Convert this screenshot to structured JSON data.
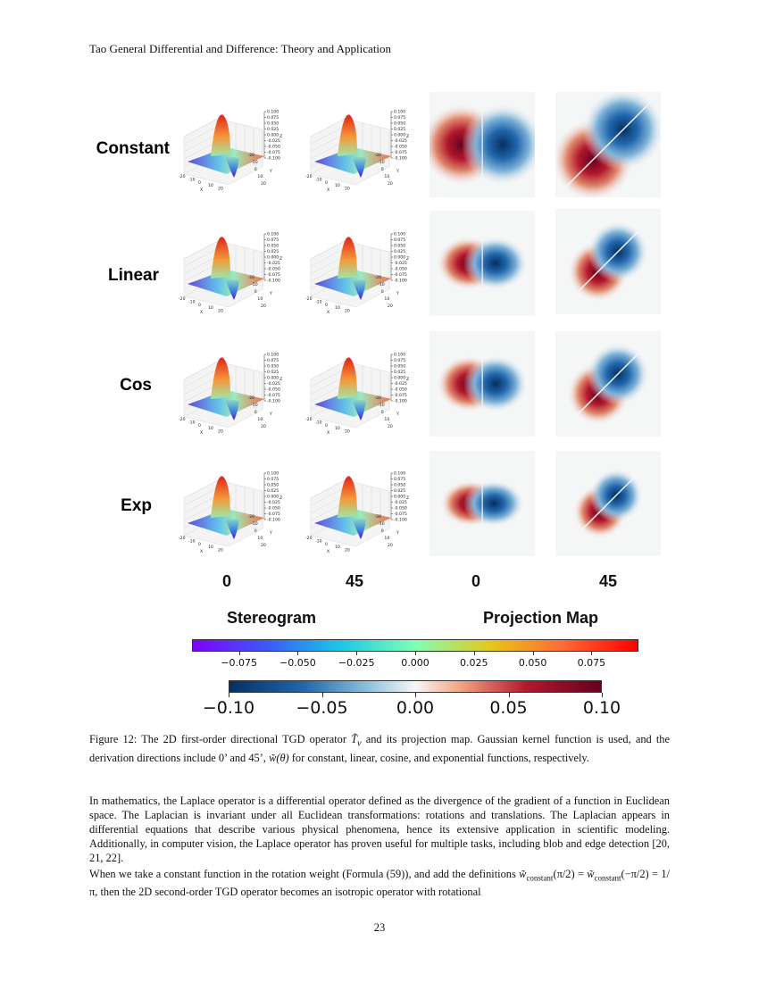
{
  "header": {
    "running_title": "Tao General Differential and Difference: Theory and Application"
  },
  "figure": {
    "row_labels": [
      "Constant",
      "Linear",
      "Cos",
      "Exp"
    ],
    "column_angles": [
      "0",
      "45",
      "0",
      "45"
    ],
    "group_labels": {
      "left": "Stereogram",
      "right": "Projection Map"
    },
    "axis_labels": {
      "x": "X",
      "y": "Y",
      "z": "Z"
    },
    "z_ticks": [
      "0.100",
      "0.075",
      "0.050",
      "0.025",
      "0.000",
      "-0.025",
      "-0.050",
      "-0.075",
      "-0.100"
    ],
    "xy_ticks": [
      "-20",
      "-10",
      "0",
      "10",
      "20"
    ],
    "colorbar_rainbow": {
      "colormap": "rainbow",
      "ticks": [
        "−0.075",
        "−0.050",
        "−0.025",
        "0.000",
        "0.025",
        "0.050",
        "0.075"
      ]
    },
    "colorbar_diverging": {
      "colormap": "RdBu (diverging, dark blue to dark red)",
      "ticks": [
        "−0.10",
        "−0.05",
        "0.00",
        "0.05",
        "0.10"
      ]
    }
  },
  "caption": {
    "lead": "Figure 12: The 2D first-order directional TGD operator ",
    "symbol": "T̃",
    "symbol_sub": "v",
    "mid": " and its projection map. Gaussian kernel function is used, and the derivation directions include 0’ and 45’, ",
    "weight": "w̃(θ)",
    "tail": " for constant, linear, cosine, and exponential functions, respectively."
  },
  "body": {
    "paragraph_1": "In mathematics, the Laplace operator is a differential operator defined as the divergence of the gradient of a function in Euclidean space. The Laplacian is invariant under all Euclidean transformations: rotations and translations. The Laplacian appears in differential equations that describe various physical phenomena, hence its extensive application in scientific modeling. Additionally, in computer vision, the Laplace operator has proven useful for multiple tasks, including blob and edge detection [20, 21, 22].",
    "paragraph_2_a": "When we take a constant function in the rotation weight (Formula (59)), and add the definitions ",
    "paragraph_2_b": "w̃",
    "paragraph_2_b_sub": "constant",
    "paragraph_2_c": "(π/2) = ",
    "paragraph_2_d": "w̃",
    "paragraph_2_d_sub": "constant",
    "paragraph_2_e": "(−π/2) = 1/π, then the 2D second-order TGD operator becomes an isotropic operator with rotational"
  },
  "page_number": "23"
}
